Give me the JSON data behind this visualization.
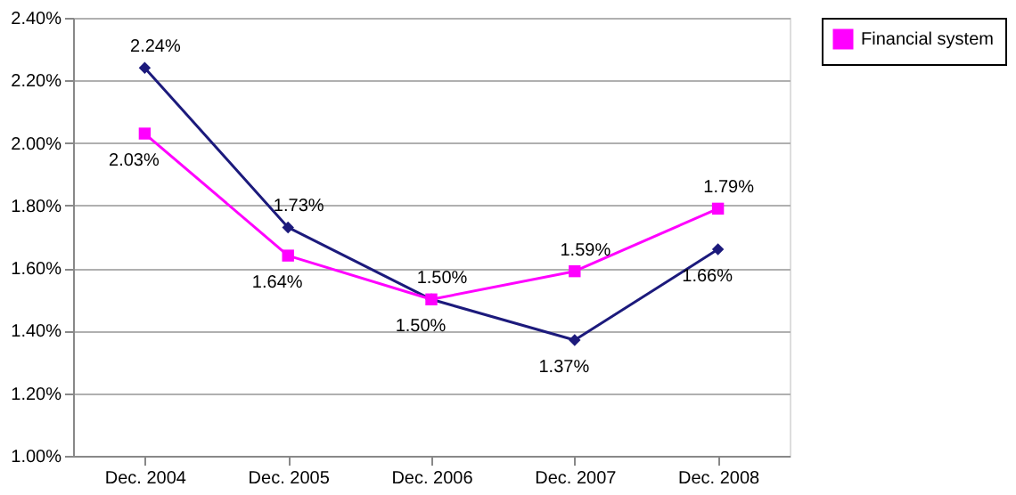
{
  "chart_data": {
    "type": "line",
    "categories": [
      "Dec. 2004",
      "Dec. 2005",
      "Dec. 2006",
      "Dec. 2007",
      "Dec. 2008"
    ],
    "series": [
      {
        "color": "#1c1a7c",
        "marker": "diamond",
        "values": [
          2.24,
          1.73,
          1.5,
          1.37,
          1.66
        ],
        "value_labels": [
          "2.24%",
          "1.73%",
          "1.50%",
          "1.37%",
          "1.66%"
        ]
      },
      {
        "name": "Financial system",
        "color": "#ff00ff",
        "marker": "square",
        "values": [
          2.03,
          1.64,
          1.5,
          1.59,
          1.79
        ],
        "value_labels": [
          "2.03%",
          "1.64%",
          "1.50%",
          "1.59%",
          "1.79%"
        ]
      }
    ],
    "ylim": [
      1.0,
      2.4
    ],
    "yticks": [
      {
        "value": 1.0,
        "label": "1.00%"
      },
      {
        "value": 1.2,
        "label": "1.20%"
      },
      {
        "value": 1.4,
        "label": "1.40%"
      },
      {
        "value": 1.6,
        "label": "1.60%"
      },
      {
        "value": 1.8,
        "label": "1.80%"
      },
      {
        "value": 2.0,
        "label": "2.00%"
      },
      {
        "value": 2.2,
        "label": "2.20%"
      },
      {
        "value": 2.4,
        "label": "2.40%"
      }
    ],
    "grid": "y",
    "legend": "right",
    "line_style": "solid"
  }
}
